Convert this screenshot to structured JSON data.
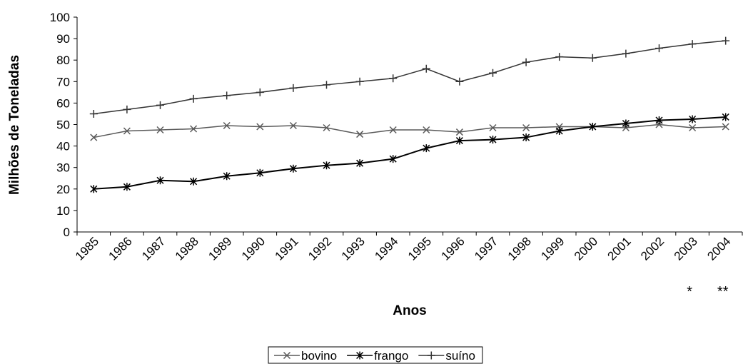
{
  "chart_data": {
    "type": "line",
    "x_label": "Anos",
    "y_label": "Milhões de Toneladas",
    "categories": [
      "1985",
      "1986",
      "1987",
      "1988",
      "1989",
      "1990",
      "1991",
      "1992",
      "1993",
      "1994",
      "1995",
      "1996",
      "1997",
      "1998",
      "1999",
      "2000",
      "2001",
      "2002",
      "2003",
      "2004"
    ],
    "series": [
      {
        "name": "bovino",
        "color": "#595959",
        "marker": "x",
        "values": [
          44,
          47,
          47.5,
          48,
          49.5,
          49,
          49.5,
          48.5,
          45.5,
          47.5,
          47.5,
          46.5,
          48.5,
          48.5,
          49,
          49,
          48.5,
          50,
          48.5,
          49
        ]
      },
      {
        "name": "frango",
        "color": "#000000",
        "marker": "asterisk",
        "values": [
          20,
          21,
          24,
          23.5,
          26,
          27.5,
          29.5,
          31,
          32,
          34,
          39,
          42.5,
          43,
          44,
          47,
          49,
          50.5,
          52,
          52.5,
          53.5
        ]
      },
      {
        "name": "suíno",
        "color": "#333333",
        "marker": "plus",
        "values": [
          55,
          57,
          59,
          62,
          63.5,
          65,
          67,
          68.5,
          70,
          71.5,
          76,
          70,
          74,
          79,
          81.5,
          81,
          83,
          85.5,
          87.5,
          89
        ]
      }
    ],
    "ylim": [
      0,
      100
    ],
    "yticks": [
      0,
      10,
      20,
      30,
      40,
      50,
      60,
      70,
      80,
      90,
      100
    ],
    "annotations": [
      {
        "text": "*",
        "category": "2003"
      },
      {
        "text": "**",
        "category": "2004"
      }
    ],
    "legend": "bottom"
  }
}
